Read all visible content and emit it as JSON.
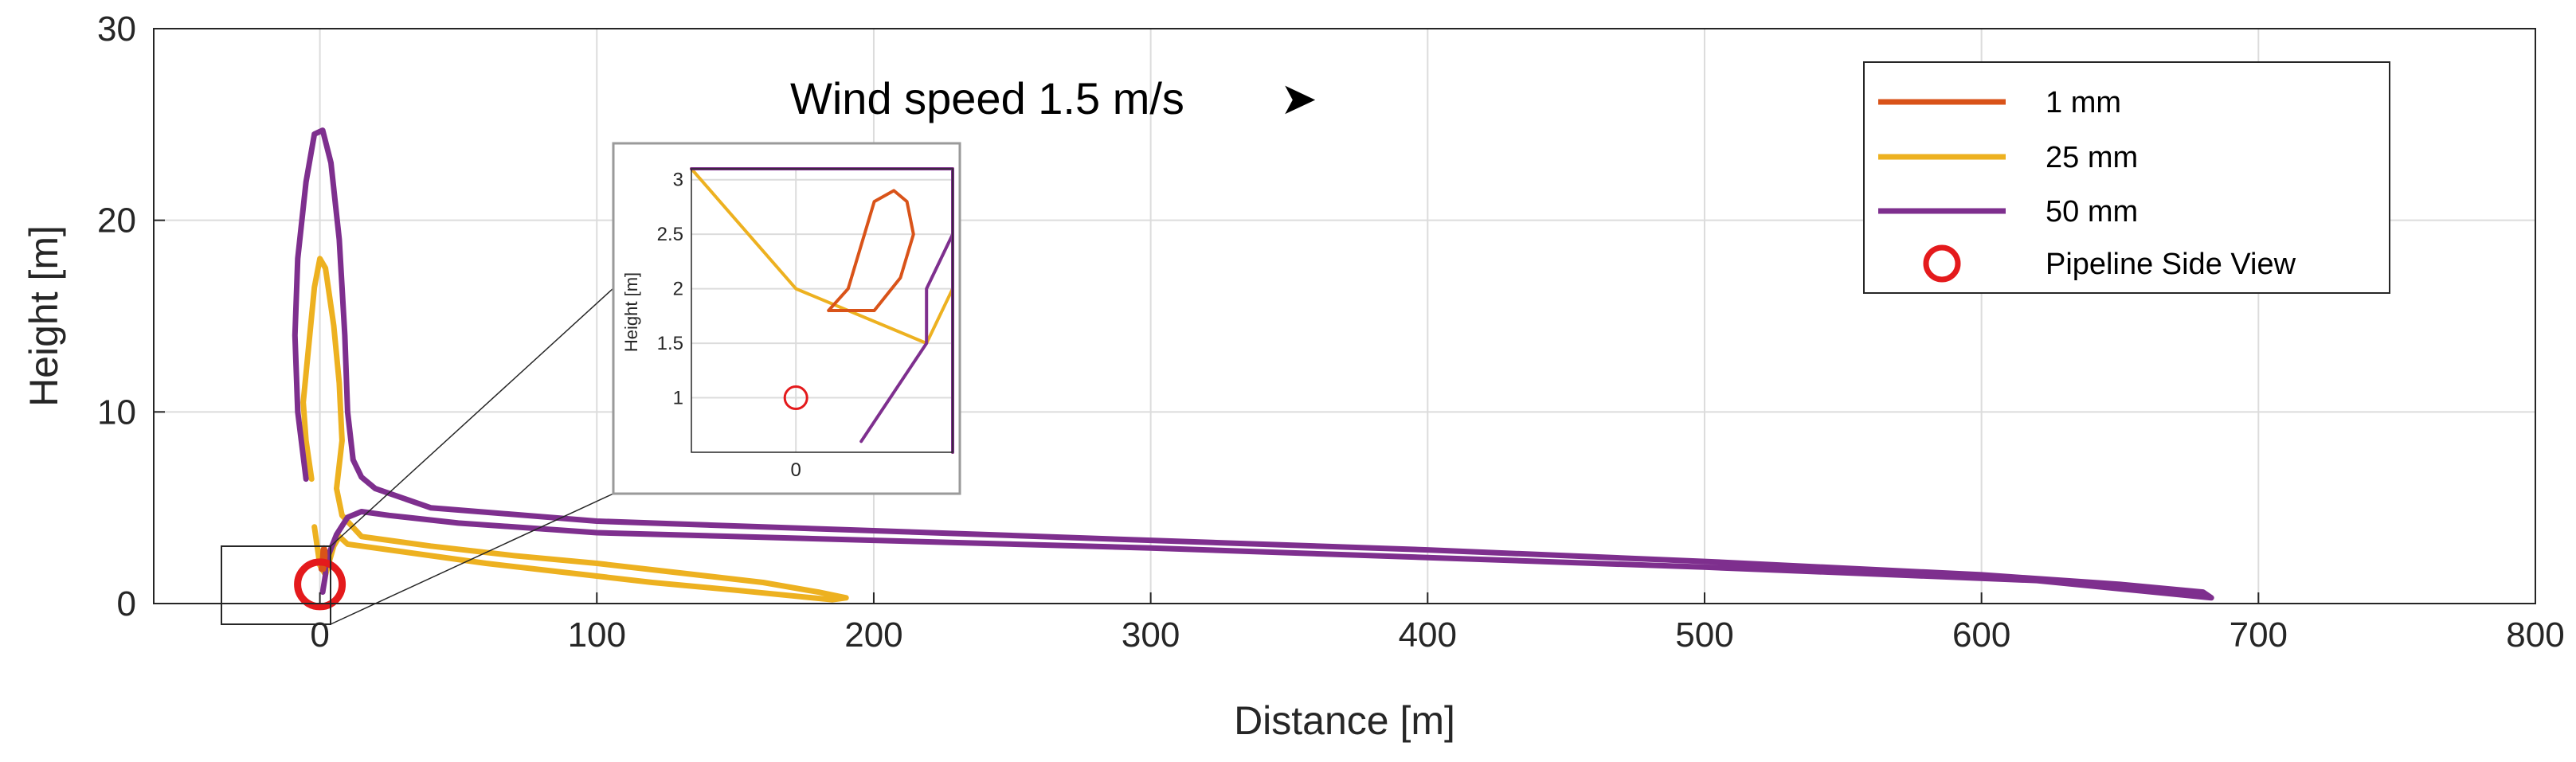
{
  "colors": {
    "series_1mm": "#d95319",
    "series_25mm": "#edb120",
    "series_50mm": "#7e2f8e",
    "pipeline": "#e41a1c",
    "axis": "#262626",
    "grid": "#dcdcdc"
  },
  "chart_data": {
    "type": "line",
    "title": "",
    "xlabel": "Distance [m]",
    "ylabel": "Height [m]",
    "xlim": [
      -60,
      800
    ],
    "ylim": [
      0,
      30
    ],
    "xticks": [
      0,
      100,
      200,
      300,
      400,
      500,
      600,
      700,
      800
    ],
    "yticks": [
      0,
      10,
      20,
      30
    ],
    "grid": true,
    "legend_position": "top-right",
    "annotation": {
      "text": "Wind speed 1.5 m/s",
      "arrow": "➤",
      "x": 240,
      "y": 26.5
    },
    "series": [
      {
        "name": "1 mm",
        "color": "#d95319",
        "x": [
          0.5,
          0.8,
          1.0,
          1.2,
          1.5,
          1.7,
          1.8,
          1.6,
          1.2,
          0.9,
          0.6,
          0.5
        ],
        "y": [
          1.8,
          2.0,
          2.4,
          2.8,
          2.9,
          2.8,
          2.5,
          2.1,
          1.8,
          1.8,
          1.8,
          1.8
        ]
      },
      {
        "name": "25 mm",
        "color": "#edb120",
        "x": [
          -3,
          -5,
          -6,
          -4,
          -2,
          0,
          2,
          5,
          7,
          8,
          6,
          8,
          15,
          25,
          40,
          70,
          100,
          130,
          160,
          180,
          190,
          185,
          150,
          120,
          90,
          60,
          30,
          15,
          10,
          7,
          5,
          4,
          3,
          2,
          0,
          -2
        ],
        "y": [
          6.5,
          8.5,
          10.5,
          13.5,
          16.5,
          18,
          17.5,
          14.5,
          11.5,
          8.5,
          6,
          4.6,
          3.5,
          3.3,
          3.0,
          2.5,
          2.1,
          1.6,
          1.1,
          0.6,
          0.3,
          0.2,
          0.7,
          1.1,
          1.6,
          2.1,
          2.7,
          3.0,
          3.1,
          3.5,
          3.0,
          2.5,
          2.0,
          1.5,
          2.0,
          4.0
        ]
      },
      {
        "name": "50 mm",
        "color": "#7e2f8e",
        "x": [
          -5,
          -8,
          -9,
          -8,
          -5,
          -2,
          1,
          4,
          7,
          9,
          10,
          12,
          15,
          20,
          40,
          100,
          200,
          300,
          400,
          500,
          600,
          650,
          680,
          683,
          620,
          500,
          400,
          300,
          200,
          100,
          50,
          25,
          15,
          10,
          6,
          3,
          2,
          2,
          1
        ],
        "y": [
          6.5,
          10,
          14,
          18,
          22,
          24.5,
          24.7,
          23,
          19,
          14,
          10,
          7.5,
          6.6,
          6.0,
          5.0,
          4.3,
          3.8,
          3.3,
          2.8,
          2.2,
          1.5,
          1.0,
          0.6,
          0.3,
          1.2,
          1.9,
          2.4,
          2.9,
          3.3,
          3.7,
          4.2,
          4.6,
          4.8,
          4.5,
          3.6,
          2.5,
          2.0,
          1.5,
          0.6
        ]
      },
      {
        "name": "Pipeline Side View",
        "type": "marker",
        "color": "#e41a1c",
        "x": [
          0
        ],
        "y": [
          1
        ]
      }
    ],
    "inset": {
      "ylabel": "Height [m]",
      "xlim": [
        -1.6,
        2.4
      ],
      "ylim": [
        0.5,
        3.1
      ],
      "xticks": [
        0
      ],
      "yticks": [
        1,
        1.5,
        2,
        2.5,
        3
      ]
    }
  }
}
